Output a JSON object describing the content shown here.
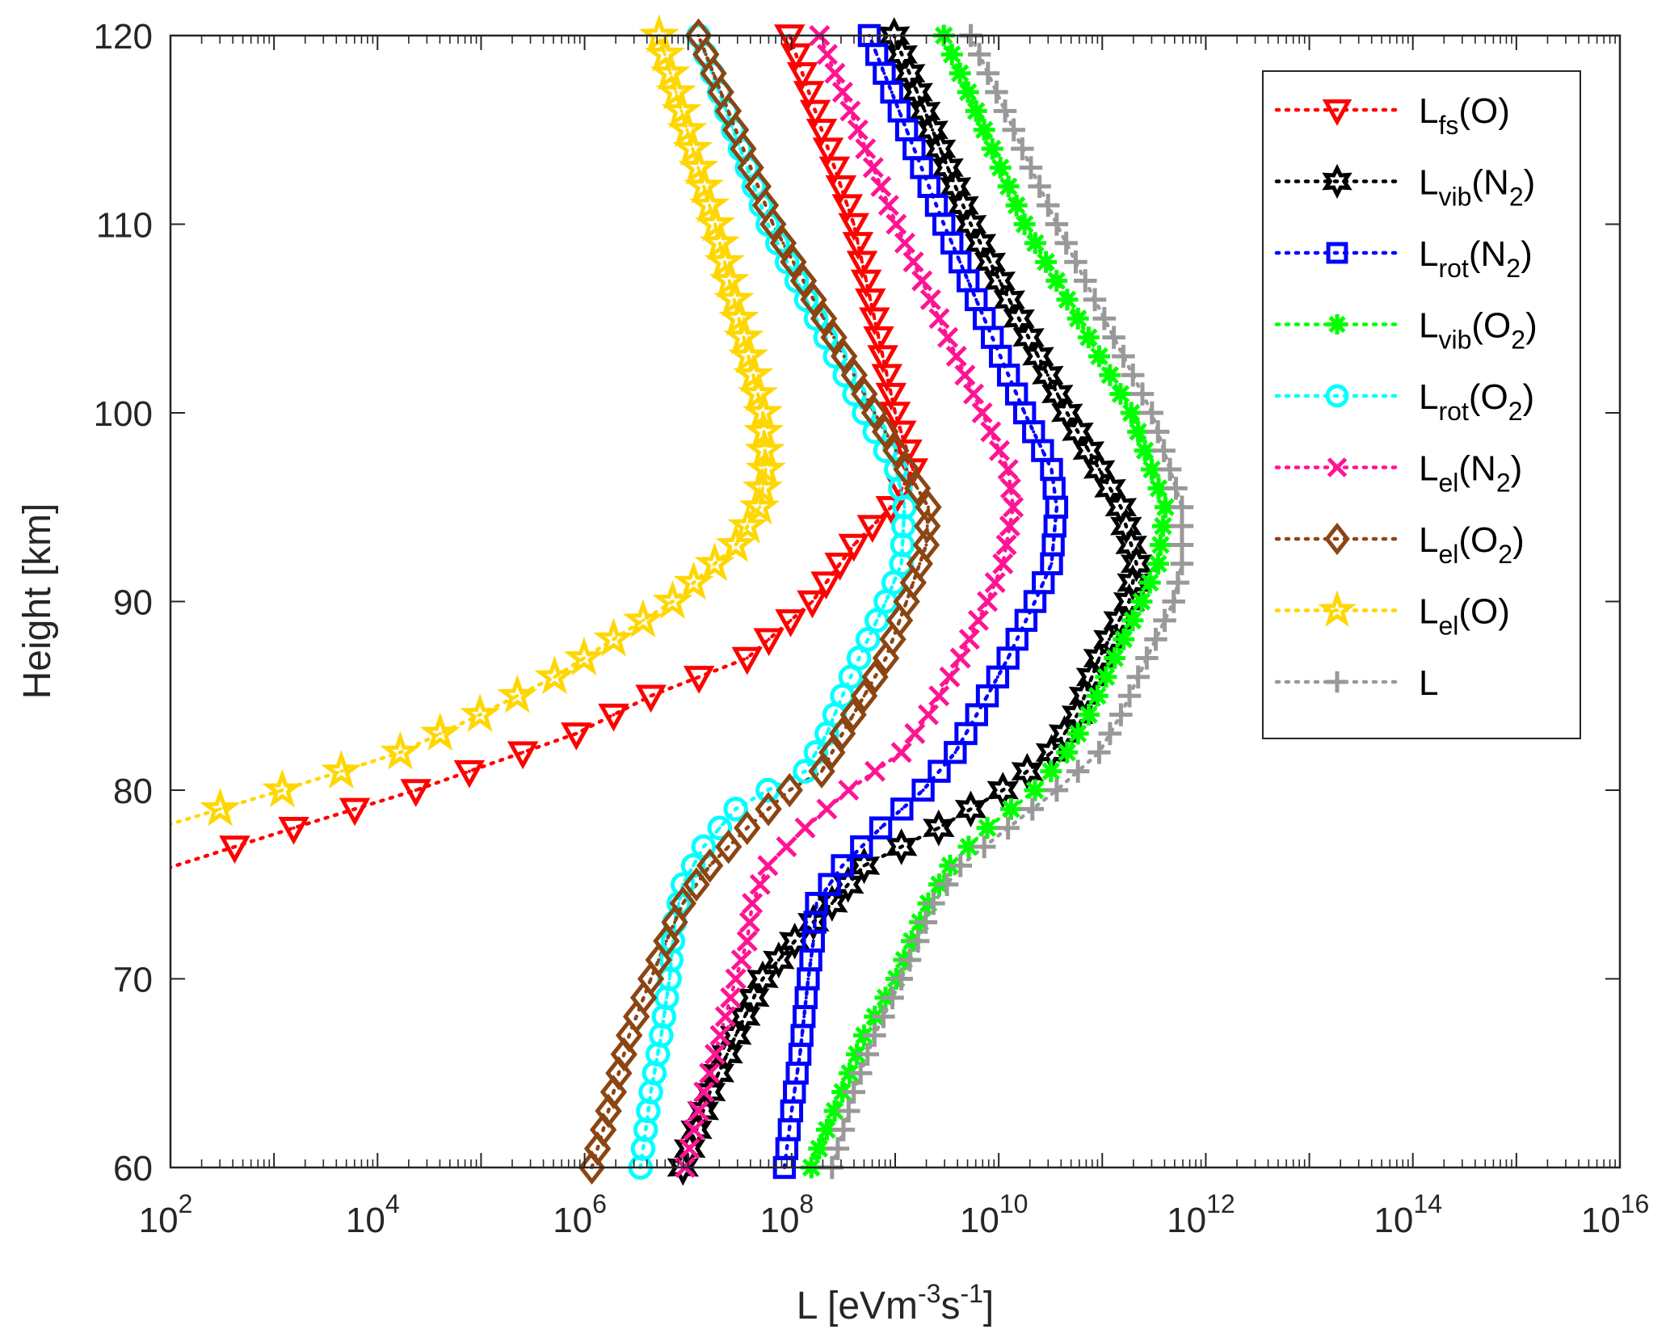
{
  "chart_data": {
    "type": "line",
    "title": "",
    "xlabel": {
      "base": "L [eVm",
      "sup1": "-3",
      "mid": "s",
      "sup2": "-1",
      "end": "]"
    },
    "ylabel": "Height [km]",
    "xscale": "log",
    "xlim_log10": [
      2,
      16
    ],
    "ylim": [
      60,
      120
    ],
    "x_tick_exponents": [
      "2",
      "4",
      "6",
      "8",
      "10",
      "12",
      "14",
      "16"
    ],
    "x_tick_base": "10",
    "y_ticks": [
      "60",
      "70",
      "80",
      "90",
      "100",
      "110",
      "120"
    ],
    "grid": false,
    "legend_position": "top-right",
    "value_units": "log10(L [eV m^-3 s^-1])",
    "marker_spacing_km": 1,
    "series": [
      {
        "name": "Lfs(O)",
        "label_main": "L",
        "label_sub": "fs",
        "label_arg": "(O)",
        "label_arg_sub": "",
        "label_arg_end": "",
        "color": "#ff0000",
        "marker": "triangle-down",
        "heights": [
          77,
          78,
          80,
          83,
          85,
          87,
          90,
          93,
          95,
          97,
          100,
          110,
          120
        ],
        "log10_values": [
          2.62,
          3.19,
          4.37,
          5.92,
          6.64,
          7.57,
          8.2,
          8.6,
          8.96,
          9.17,
          9.0,
          8.6,
          7.98
        ]
      },
      {
        "name": "Lvib(N2)",
        "label_main": "L",
        "label_sub": "vib",
        "label_arg": "(N",
        "label_arg_sub": "2",
        "label_arg_end": ")",
        "color": "#000000",
        "marker": "hexagram",
        "heights": [
          60,
          64,
          67,
          70,
          72,
          74,
          76,
          78,
          80,
          82,
          84,
          87,
          90,
          92,
          95,
          100,
          110,
          120
        ],
        "log10_values": [
          6.95,
          7.21,
          7.46,
          7.72,
          8.03,
          8.39,
          8.7,
          9.42,
          10.04,
          10.51,
          10.76,
          10.97,
          11.26,
          11.33,
          11.18,
          10.66,
          9.73,
          8.99
        ]
      },
      {
        "name": "Lrot(N2)",
        "label_main": "L",
        "label_sub": "rot",
        "label_arg": "(N",
        "label_arg_sub": "2",
        "label_arg_end": ")",
        "color": "#0000ff",
        "marker": "square",
        "heights": [
          60,
          63,
          66,
          70,
          72,
          74,
          76,
          78,
          80,
          82,
          85,
          87,
          90,
          92,
          95,
          97,
          100,
          110,
          120
        ],
        "log10_values": [
          7.93,
          8.0,
          8.08,
          8.16,
          8.21,
          8.24,
          8.49,
          8.86,
          9.27,
          9.58,
          9.89,
          10.09,
          10.35,
          10.51,
          10.56,
          10.51,
          10.25,
          9.47,
          8.75
        ]
      },
      {
        "name": "Lvib(O2)",
        "label_main": "L",
        "label_sub": "vib",
        "label_arg": "(O",
        "label_arg_sub": "2",
        "label_arg_end": ")",
        "color": "#00ff00",
        "marker": "asterisk",
        "heights": [
          60,
          62,
          64,
          67,
          70,
          72,
          74,
          76,
          78,
          80,
          82,
          84,
          87,
          90,
          92,
          95,
          100,
          110,
          120
        ],
        "log10_values": [
          8.19,
          8.34,
          8.49,
          8.7,
          9.01,
          9.16,
          9.32,
          9.53,
          9.89,
          10.35,
          10.66,
          10.87,
          11.12,
          11.38,
          11.54,
          11.61,
          11.28,
          10.25,
          9.47
        ]
      },
      {
        "name": "Lrot(O2)",
        "label_main": "L",
        "label_sub": "rot",
        "label_arg": "(O",
        "label_arg_sub": "2",
        "label_arg_end": ")",
        "color": "#00ffff",
        "marker": "circle",
        "heights": [
          60,
          62,
          64,
          67,
          70,
          73,
          75,
          77,
          79,
          80,
          81,
          83,
          85,
          87,
          90,
          92,
          95,
          97,
          100,
          110,
          120
        ],
        "log10_values": [
          6.54,
          6.59,
          6.64,
          6.74,
          6.82,
          6.87,
          6.95,
          7.15,
          7.46,
          7.77,
          8.13,
          8.34,
          8.49,
          8.65,
          8.91,
          9.06,
          9.09,
          9.01,
          8.7,
          7.77,
          7.1
        ]
      },
      {
        "name": "Lel(N2)",
        "label_main": "L",
        "label_sub": "el",
        "label_arg": "(N",
        "label_arg_sub": "2",
        "label_arg_end": ")",
        "color": "#ff1493",
        "marker": "x",
        "heights": [
          60,
          63,
          66,
          70,
          72,
          74,
          76,
          78,
          80,
          82,
          84,
          87,
          90,
          92,
          95,
          97,
          100,
          110,
          120
        ],
        "log10_values": [
          6.97,
          7.1,
          7.26,
          7.46,
          7.57,
          7.62,
          7.77,
          8.13,
          8.55,
          9.06,
          9.32,
          9.63,
          9.89,
          10.04,
          10.14,
          10.09,
          9.84,
          9.01,
          8.27
        ]
      },
      {
        "name": "Lel(O2)",
        "label_main": "L",
        "label_sub": "el",
        "label_arg": "(O",
        "label_arg_sub": "2",
        "label_arg_end": ")",
        "color": "#8b4513",
        "marker": "diamond",
        "heights": [
          60,
          62,
          64,
          67,
          70,
          72,
          74,
          76,
          78,
          80,
          81,
          83,
          85,
          87,
          90,
          93,
          95,
          97,
          100,
          110,
          120
        ],
        "log10_values": [
          6.07,
          6.18,
          6.28,
          6.43,
          6.64,
          6.79,
          6.95,
          7.21,
          7.57,
          7.98,
          8.29,
          8.49,
          8.7,
          8.91,
          9.11,
          9.3,
          9.32,
          9.11,
          8.8,
          7.82,
          7.1
        ]
      },
      {
        "name": "Lel(O)",
        "label_main": "L",
        "label_sub": "el",
        "label_arg": "(O)",
        "label_arg_sub": "",
        "label_arg_end": "",
        "color": "#ffd700",
        "marker": "pentagram",
        "heights": [
          79,
          80,
          82,
          84,
          86,
          88,
          90,
          93,
          95,
          97,
          100,
          110,
          120
        ],
        "log10_values": [
          2.48,
          3.08,
          4.22,
          4.99,
          5.71,
          6.28,
          6.85,
          7.46,
          7.69,
          7.75,
          7.72,
          7.26,
          6.72
        ]
      },
      {
        "name": "L",
        "label_main": "L",
        "label_sub": "",
        "label_arg": "",
        "label_arg_sub": "",
        "label_arg_end": "",
        "color": "#999999",
        "marker": "plus",
        "heights": [
          60,
          62,
          64,
          67,
          70,
          72,
          74,
          76,
          78,
          80,
          82,
          84,
          87,
          90,
          92,
          95,
          100,
          110,
          120
        ],
        "log10_values": [
          8.39,
          8.5,
          8.6,
          8.8,
          9.06,
          9.22,
          9.37,
          9.63,
          10.09,
          10.56,
          10.97,
          11.18,
          11.43,
          11.69,
          11.77,
          11.77,
          11.48,
          10.56,
          9.73
        ]
      }
    ]
  }
}
